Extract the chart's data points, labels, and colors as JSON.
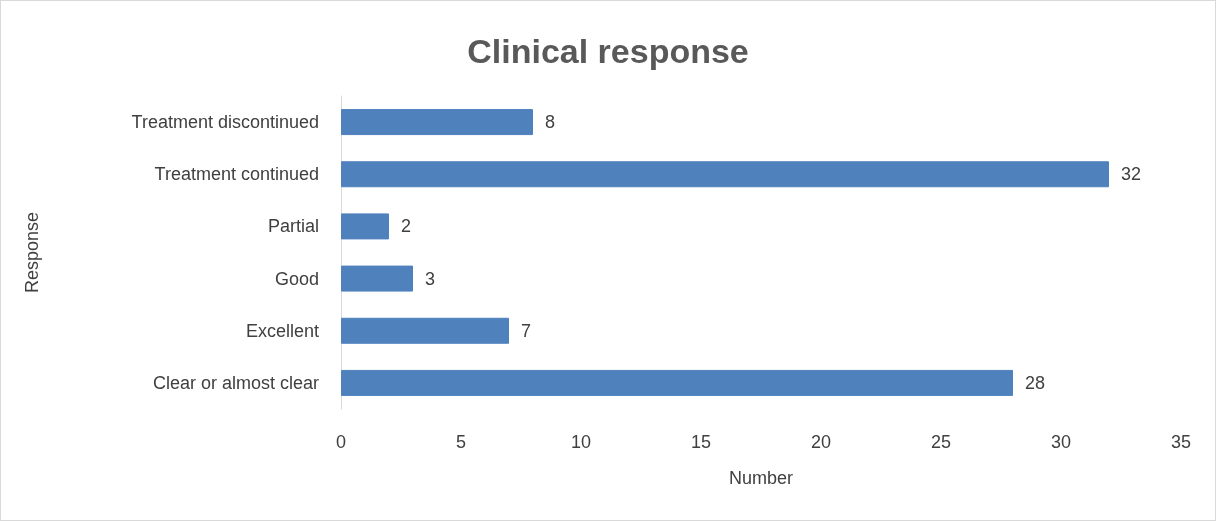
{
  "chart_data": {
    "type": "bar",
    "orientation": "horizontal",
    "title": "Clinical response",
    "xlabel": "Number",
    "ylabel": "Response",
    "categories": [
      "Treatment discontinued",
      "Treatment continued",
      "Partial",
      "Good",
      "Excellent",
      "Clear or almost clear"
    ],
    "values": [
      8,
      32,
      2,
      3,
      7,
      28
    ],
    "color": "#4f81bd",
    "xlim": [
      0,
      35
    ],
    "xticks": [
      0,
      5,
      10,
      15,
      20,
      25,
      30,
      35
    ],
    "grid": false,
    "data_labels": true
  }
}
